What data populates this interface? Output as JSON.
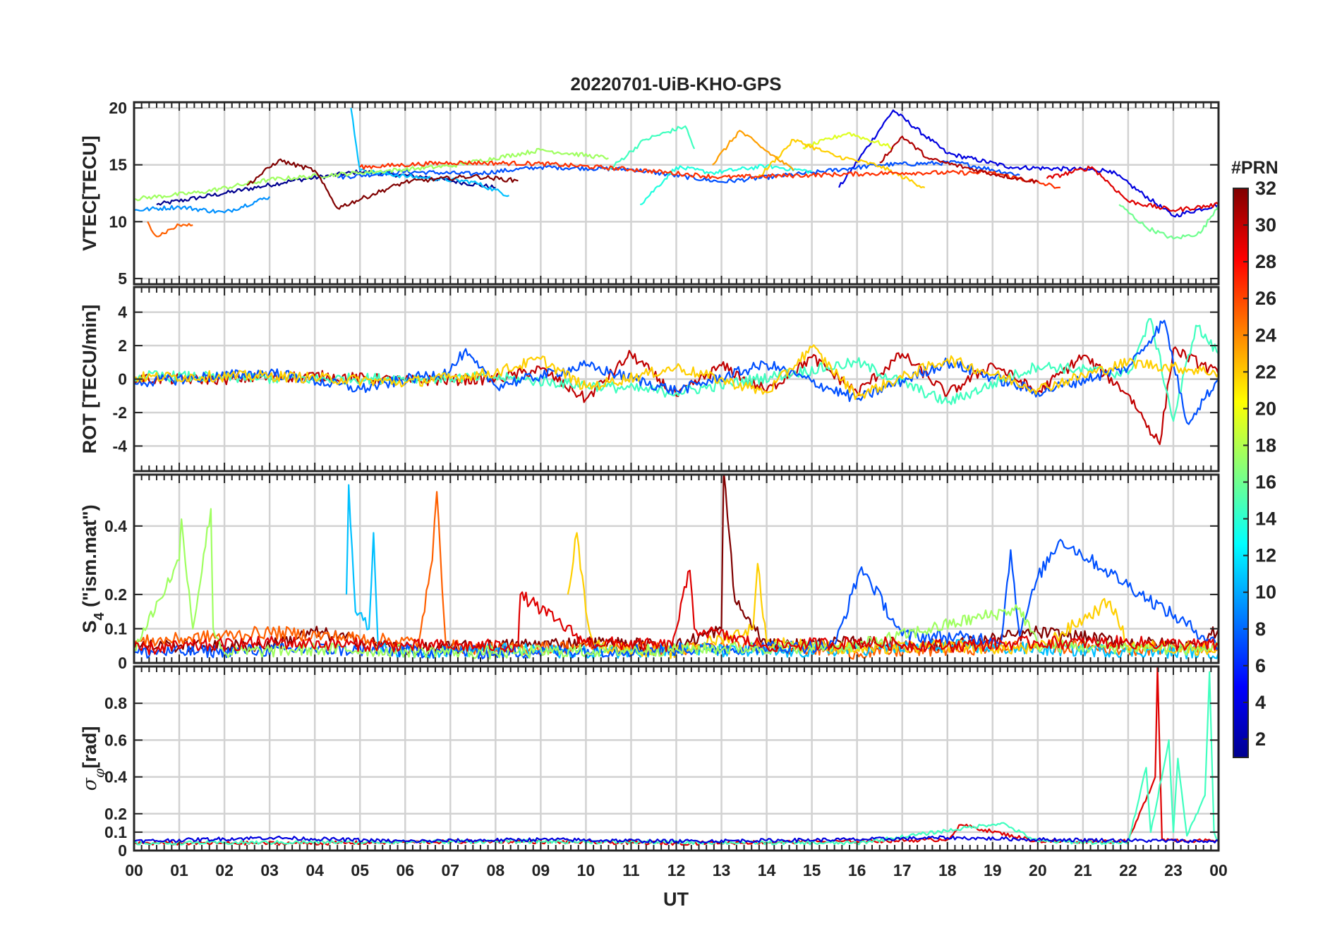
{
  "chart_data": {
    "type": "line",
    "title": "20220701-UiB-KHO-GPS",
    "xlabel": "UT",
    "x_ticks": [
      "00",
      "01",
      "02",
      "03",
      "04",
      "05",
      "06",
      "07",
      "08",
      "09",
      "10",
      "11",
      "12",
      "13",
      "14",
      "15",
      "16",
      "17",
      "18",
      "19",
      "20",
      "21",
      "22",
      "23",
      "00"
    ],
    "xlim": [
      0,
      24
    ],
    "grid": true,
    "panels": [
      {
        "id": "vtec",
        "ylabel": "VTEC[TECU]",
        "ylim": [
          4.5,
          20.5
        ],
        "y_ticks": [
          {
            "v": 5,
            "t": "5"
          },
          {
            "v": 10,
            "t": "10"
          },
          {
            "v": 15,
            "t": "15"
          },
          {
            "v": 20,
            "t": "20"
          }
        ],
        "series": [
          {
            "name": "PRN 01",
            "color": "#00008f",
            "x": [
              0.5,
              2.0,
              3.5,
              5.0,
              6.5,
              8.0
            ],
            "y": [
              11.5,
              12.5,
              13.6,
              14.4,
              13.9,
              13.0
            ]
          },
          {
            "name": "PRN 03",
            "color": "#0000df",
            "x": [
              15.6,
              16.8,
              18.0,
              19.4,
              21.6,
              23.0,
              24.0
            ],
            "y": [
              13.0,
              19.8,
              16.0,
              14.8,
              14.5,
              10.5,
              11.5
            ]
          },
          {
            "name": "PRN 05",
            "color": "#0050ff",
            "x": [
              4.5,
              6.0,
              7.5,
              9.0,
              11.0,
              13.0,
              15.0,
              16.5,
              18.2,
              19.6
            ],
            "y": [
              13.9,
              14.4,
              14.2,
              14.8,
              14.6,
              13.5,
              14.3,
              15.0,
              15.2,
              14.1
            ]
          },
          {
            "name": "PRN 07",
            "color": "#0090ff",
            "x": [
              0.0,
              1.0,
              2.0,
              3.0
            ],
            "y": [
              11.0,
              11.3,
              10.8,
              12.2
            ]
          },
          {
            "name": "PRN 09",
            "color": "#00c0ff",
            "x": [
              4.8,
              5.0,
              6.0,
              7.5,
              8.3
            ],
            "y": [
              20.0,
              14.5,
              14.0,
              13.5,
              12.3
            ]
          },
          {
            "name": "PRN 11",
            "color": "#20ffdf",
            "x": [
              11.2,
              12.0,
              12.8,
              14.0,
              15.0
            ],
            "y": [
              11.5,
              14.8,
              14.3,
              14.9,
              14.4
            ]
          },
          {
            "name": "PRN 13",
            "color": "#40ffbf",
            "x": [
              10.5,
              11.3,
              12.2,
              12.4
            ],
            "y": [
              14.5,
              17.2,
              18.4,
              16.4
            ]
          },
          {
            "name": "PRN 15",
            "color": "#70ff8f",
            "x": [
              21.8,
              22.4,
              23.0,
              23.6,
              24.0
            ],
            "y": [
              11.5,
              9.5,
              8.5,
              9.0,
              11.5
            ]
          },
          {
            "name": "PRN 17",
            "color": "#9fff60",
            "x": [
              0.0,
              1.5,
              3.0,
              5.0,
              7.0,
              9.0,
              10.5
            ],
            "y": [
              12.0,
              12.6,
              13.7,
              14.3,
              14.9,
              16.3,
              15.6
            ]
          },
          {
            "name": "PRN 19",
            "color": "#dfff20",
            "x": [
              14.8,
              15.8,
              16.8
            ],
            "y": [
              16.5,
              17.8,
              16.5
            ]
          },
          {
            "name": "PRN 21",
            "color": "#ffcf00",
            "x": [
              13.8,
              14.6,
              15.5,
              16.5,
              17.5
            ],
            "y": [
              13.8,
              17.2,
              15.8,
              14.9,
              13.0
            ]
          },
          {
            "name": "PRN 23",
            "color": "#ff9f00",
            "x": [
              12.8,
              13.4,
              14.0,
              14.6
            ],
            "y": [
              15.0,
              18.0,
              16.2,
              14.5
            ]
          },
          {
            "name": "PRN 25",
            "color": "#ff6000",
            "x": [
              0.3,
              0.5,
              1.0,
              1.3
            ],
            "y": [
              10.0,
              8.7,
              9.7,
              9.7
            ]
          },
          {
            "name": "PRN 27",
            "color": "#ff3000",
            "x": [
              5.0,
              7.0,
              9.0,
              11.0,
              13.0,
              15.0,
              17.0,
              19.0,
              20.5
            ],
            "y": [
              14.8,
              15.2,
              15.1,
              14.6,
              13.9,
              14.1,
              14.3,
              14.3,
              13.0
            ]
          },
          {
            "name": "PRN 29",
            "color": "#df0000",
            "x": [
              20.2,
              21.2,
              22.0,
              23.0,
              24.0
            ],
            "y": [
              13.8,
              14.8,
              11.8,
              11.0,
              11.5
            ]
          },
          {
            "name": "PRN 31",
            "color": "#af0000",
            "x": [
              16.5,
              17.0,
              17.6,
              19.0,
              20.0
            ],
            "y": [
              15.2,
              17.5,
              15.5,
              14.2,
              13.5
            ]
          },
          {
            "name": "PRN 32",
            "color": "#800000",
            "x": [
              2.5,
              3.2,
              4.0,
              4.5,
              6.0,
              7.5,
              8.5
            ],
            "y": [
              13.2,
              15.4,
              14.5,
              11.2,
              13.5,
              14.0,
              13.6
            ]
          }
        ]
      },
      {
        "id": "rot",
        "ylabel": "ROT [TECU/min]",
        "ylim": [
          -5.5,
          5.5
        ],
        "y_ticks": [
          {
            "v": -4,
            "t": "-4"
          },
          {
            "v": -2,
            "t": "-2"
          },
          {
            "v": 0,
            "t": "0"
          },
          {
            "v": 2,
            "t": "2"
          },
          {
            "v": 4,
            "t": "4"
          }
        ],
        "series": [
          {
            "name": "PRN 28",
            "color": "#c00000",
            "x": [
              0,
              2,
              4,
              6,
              8,
              9,
              10,
              11,
              12,
              13,
              14,
              15,
              16,
              17,
              18,
              19,
              20,
              21,
              22,
              22.7,
              23,
              24
            ],
            "y": [
              0.0,
              0.0,
              0.2,
              -0.1,
              0.0,
              0.6,
              -1.2,
              1.5,
              -1.0,
              0.8,
              -0.7,
              1.3,
              -0.8,
              1.5,
              -0.9,
              0.9,
              -0.8,
              1.4,
              -0.9,
              -3.9,
              1.8,
              0.3
            ]
          },
          {
            "name": "PRN 14",
            "color": "#40ffbf",
            "x": [
              0,
              4,
              8,
              12,
              16,
              18,
              20,
              22,
              22.5,
              23,
              23.5,
              24
            ],
            "y": [
              0.2,
              0.0,
              0.1,
              -0.8,
              1.0,
              -1.4,
              0.8,
              0.3,
              3.6,
              -2.5,
              3.2,
              1.5
            ]
          },
          {
            "name": "PRN 05",
            "color": "#0050ff",
            "x": [
              0,
              3,
              5,
              7,
              7.3,
              8,
              10,
              12,
              14,
              16,
              18,
              20,
              22,
              22.8,
              23.3,
              24
            ],
            "y": [
              -0.2,
              0.4,
              -0.6,
              0.5,
              1.6,
              -0.4,
              0.8,
              -0.7,
              0.9,
              -1.2,
              1.0,
              -0.8,
              0.7,
              3.5,
              -2.6,
              0.0
            ]
          },
          {
            "name": "PRN 21",
            "color": "#ffcf00",
            "x": [
              0,
              3,
              6,
              8,
              9,
              10,
              12,
              14,
              15,
              16,
              18,
              20,
              22,
              24
            ],
            "y": [
              0.1,
              0.2,
              -0.2,
              0.4,
              1.2,
              -0.5,
              0.7,
              -0.8,
              1.9,
              -1.0,
              1.2,
              -0.6,
              1.0,
              0.4
            ]
          }
        ]
      },
      {
        "id": "s4",
        "ylabel": "S4 (\"ism.mat\")",
        "ylim": [
          0,
          0.55
        ],
        "y_ticks": [
          {
            "v": 0,
            "t": "0"
          },
          {
            "v": 0.1,
            "t": "0.1"
          },
          {
            "v": 0.2,
            "t": "0.2"
          },
          {
            "v": 0.4,
            "t": "0.4"
          }
        ],
        "series": [
          {
            "name": "PRN 32",
            "color": "#800000",
            "x": [
              0,
              3,
              4,
              6,
              8,
              10,
              12,
              13.0,
              13.05,
              13.3,
              14,
              16,
              18,
              20,
              22,
              23.5,
              24
            ],
            "y": [
              0.05,
              0.05,
              0.09,
              0.04,
              0.05,
              0.06,
              0.05,
              0.1,
              0.56,
              0.18,
              0.05,
              0.06,
              0.05,
              0.09,
              0.06,
              0.05,
              0.1
            ]
          },
          {
            "name": "PRN 24",
            "color": "#ff6000",
            "x": [
              0,
              3,
              6.3,
              6.6,
              6.7,
              6.9,
              8,
              10,
              12,
              14,
              16,
              18,
              20,
              22,
              24
            ],
            "y": [
              0.06,
              0.09,
              0.06,
              0.3,
              0.5,
              0.05,
              0.04,
              0.05,
              0.04,
              0.05,
              0.03,
              0.04,
              0.05,
              0.04,
              0.05
            ]
          },
          {
            "name": "PRN 10",
            "color": "#00c0ff",
            "x": [
              4.7,
              4.75,
              4.9,
              5.2,
              5.3,
              5.4,
              6,
              8,
              10,
              12,
              14,
              16,
              18,
              20,
              24
            ],
            "y": [
              0.2,
              0.52,
              0.15,
              0.1,
              0.38,
              0.05,
              0.03,
              0.04,
              0.03,
              0.04,
              0.03,
              0.04,
              0.05,
              0.04,
              0.03
            ]
          },
          {
            "name": "PRN 20",
            "color": "#ffcf00",
            "x": [
              9.6,
              9.8,
              10.0,
              10.2,
              12,
              13.7,
              13.8,
              14.0,
              16,
              18,
              20,
              21.6,
              22,
              24
            ],
            "y": [
              0.2,
              0.38,
              0.15,
              0.05,
              0.03,
              0.1,
              0.29,
              0.06,
              0.04,
              0.05,
              0.04,
              0.18,
              0.05,
              0.04
            ]
          },
          {
            "name": "PRN 06",
            "color": "#0050ff",
            "x": [
              0,
              4,
              8,
              12,
              15.5,
              16.1,
              17,
              19.2,
              19.4,
              19.6,
              20,
              20.5,
              24
            ],
            "y": [
              0.03,
              0.04,
              0.03,
              0.04,
              0.05,
              0.28,
              0.08,
              0.07,
              0.33,
              0.08,
              0.25,
              0.36,
              0.05
            ]
          },
          {
            "name": "PRN 16",
            "color": "#9fff60",
            "x": [
              0,
              1.0,
              1.05,
              1.3,
              1.7,
              1.75,
              2,
              4,
              8,
              12,
              16,
              19.6,
              20,
              24
            ],
            "y": [
              0.04,
              0.3,
              0.42,
              0.1,
              0.45,
              0.1,
              0.03,
              0.04,
              0.03,
              0.04,
              0.05,
              0.16,
              0.05,
              0.04
            ]
          },
          {
            "name": "PRN 26",
            "color": "#df0000",
            "x": [
              0,
              3,
              6,
              8.5,
              8.55,
              10,
              11.9,
              12.3,
              12.4,
              14,
              16,
              18,
              20,
              22,
              24
            ],
            "y": [
              0.04,
              0.06,
              0.05,
              0.05,
              0.2,
              0.06,
              0.05,
              0.27,
              0.1,
              0.05,
              0.06,
              0.05,
              0.06,
              0.06,
              0.05
            ]
          }
        ]
      },
      {
        "id": "sigma_phi",
        "ylabel": "σφ[rad]",
        "ylim": [
          0,
          1.0
        ],
        "y_ticks": [
          {
            "v": 0,
            "t": "0"
          },
          {
            "v": 0.1,
            "t": "0.1"
          },
          {
            "v": 0.2,
            "t": "0.2"
          },
          {
            "v": 0.4,
            "t": "0.4"
          },
          {
            "v": 0.6,
            "t": "0.6"
          },
          {
            "v": 0.8,
            "t": "0.8"
          }
        ],
        "series": [
          {
            "name": "PRN 28",
            "color": "#df0000",
            "x": [
              0,
              4,
              8,
              12,
              16,
              18,
              18.3,
              20,
              22,
              22.6,
              22.65,
              22.75,
              24
            ],
            "y": [
              0.04,
              0.04,
              0.05,
              0.04,
              0.05,
              0.06,
              0.14,
              0.05,
              0.05,
              0.4,
              1.0,
              0.06,
              0.05
            ]
          },
          {
            "name": "PRN 14",
            "color": "#40ffbf",
            "x": [
              0,
              8,
              16,
              19.2,
              20,
              22,
              22.4,
              22.5,
              22.9,
              23.0,
              23.1,
              23.3,
              23.7,
              23.8,
              23.9,
              24
            ],
            "y": [
              0.04,
              0.05,
              0.04,
              0.15,
              0.05,
              0.04,
              0.45,
              0.1,
              0.6,
              0.1,
              0.5,
              0.08,
              0.3,
              0.97,
              0.1,
              0.05
            ]
          },
          {
            "name": "PRN 04",
            "color": "#0000df",
            "x": [
              0,
              3,
              6,
              9,
              12,
              16,
              18,
              20,
              24
            ],
            "y": [
              0.05,
              0.07,
              0.05,
              0.06,
              0.05,
              0.06,
              0.07,
              0.06,
              0.05
            ]
          }
        ]
      }
    ],
    "colorbar": {
      "label": "#PRN",
      "range": [
        1,
        32
      ],
      "ticks": [
        "2",
        "4",
        "6",
        "8",
        "10",
        "12",
        "14",
        "16",
        "18",
        "20",
        "22",
        "24",
        "26",
        "28",
        "30",
        "32"
      ],
      "colors": [
        "#00008f",
        "#0000ff",
        "#0080ff",
        "#00ffff",
        "#80ff80",
        "#ffff00",
        "#ff8000",
        "#ff0000",
        "#800000"
      ]
    }
  }
}
